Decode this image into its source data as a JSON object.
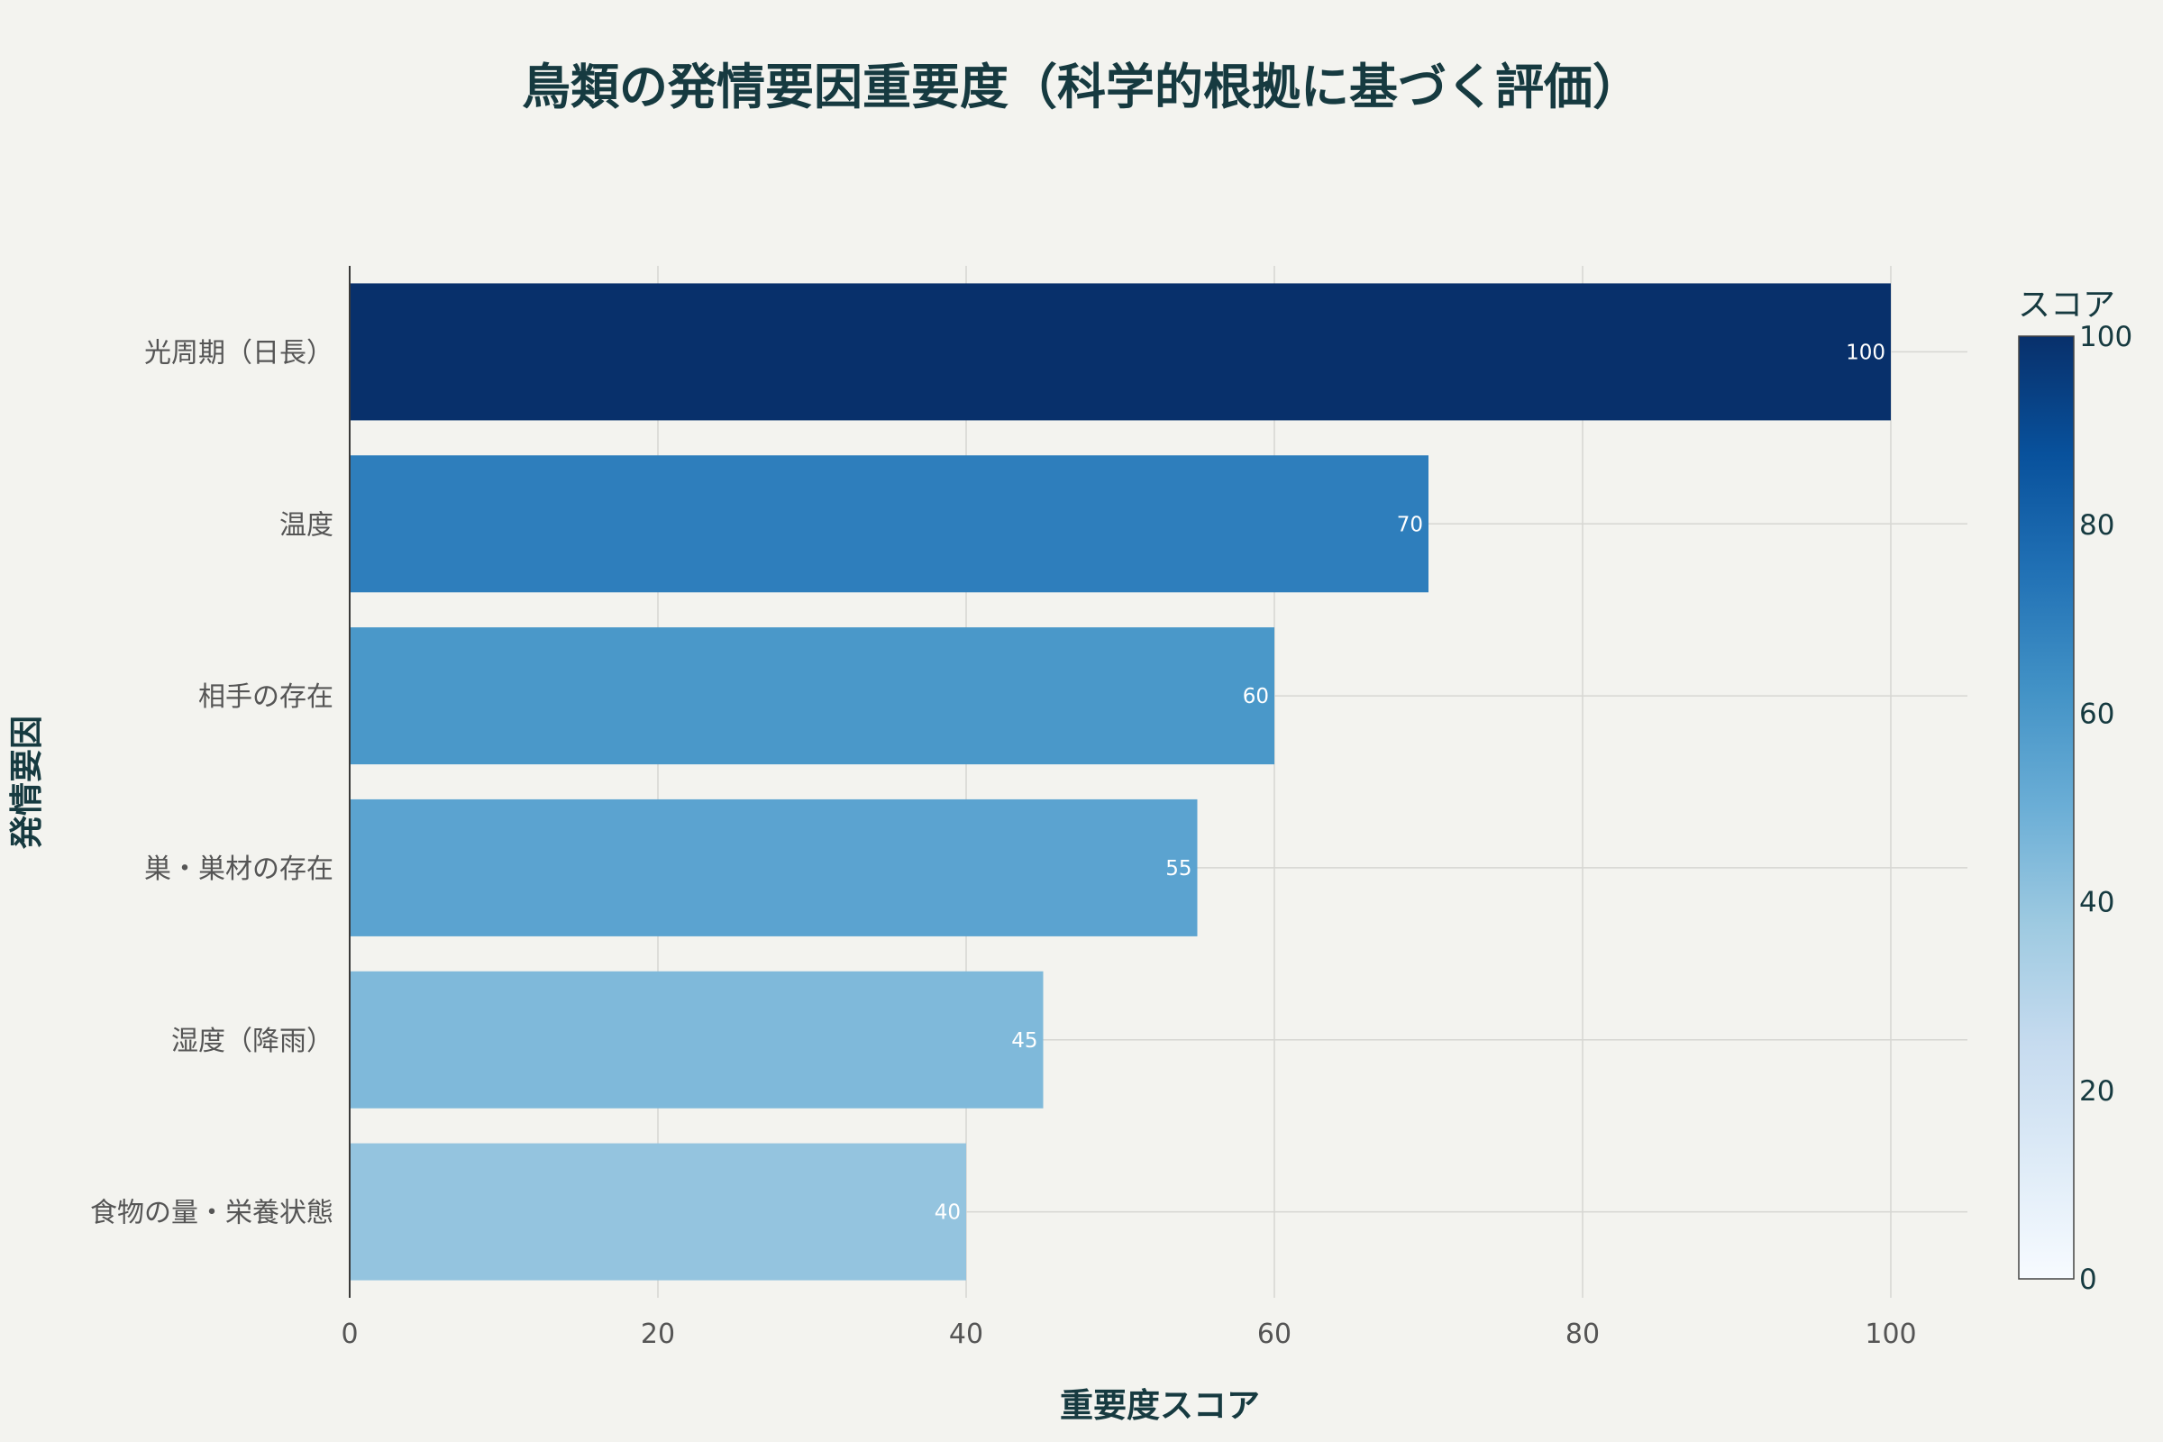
{
  "colors": {
    "background": "#f3f3ef",
    "grid": "#d6d6d2",
    "axis_line": "#3a3a3a",
    "title": "#163a40",
    "text": "#555555",
    "colorscale": [
      [
        0,
        "#f7fbff"
      ],
      [
        0.125,
        "#deebf7"
      ],
      [
        0.25,
        "#c6dbef"
      ],
      [
        0.375,
        "#9ecae1"
      ],
      [
        0.5,
        "#6baed6"
      ],
      [
        0.625,
        "#4292c6"
      ],
      [
        0.75,
        "#2171b5"
      ],
      [
        0.875,
        "#08519c"
      ],
      [
        1,
        "#08306b"
      ]
    ]
  },
  "chart_data": {
    "type": "bar",
    "orientation": "horizontal",
    "title": "鳥類の発情要因重要度（科学的根拠に基づく評価）",
    "xlabel": "重要度スコア",
    "ylabel": "発情要因",
    "xlim": [
      0,
      105
    ],
    "xticks": [
      0,
      20,
      40,
      60,
      80,
      100
    ],
    "grid": true,
    "categories": [
      "光周期（日長）",
      "温度",
      "相手の存在",
      "巣・巣材の存在",
      "湿度（降雨）",
      "食物の量・栄養状態"
    ],
    "values": [
      100,
      70,
      60,
      55,
      45,
      40
    ],
    "colorbar": {
      "title": "スコア",
      "range": [
        0,
        100
      ],
      "ticks": [
        0,
        20,
        40,
        60,
        80,
        100
      ]
    }
  }
}
